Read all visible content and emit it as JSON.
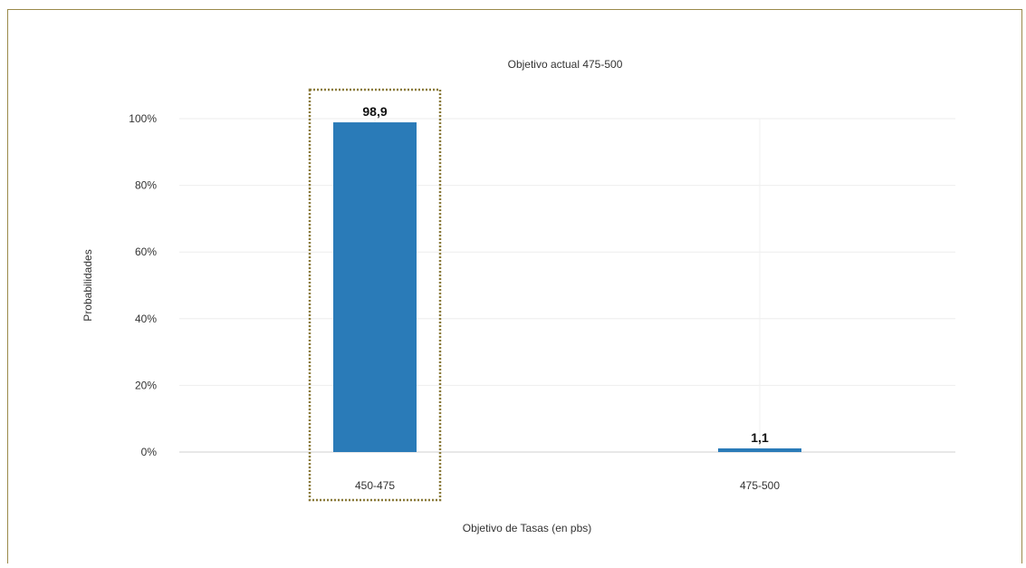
{
  "chart_data": {
    "type": "bar",
    "title": "Objetivo actual 475-500",
    "xlabel": "Objetivo de Tasas (en pbs)",
    "ylabel": "Probabilidades",
    "categories": [
      "450-475",
      "475-500"
    ],
    "values": [
      98.9,
      1.1
    ],
    "data_labels": [
      "98,9",
      "1,1"
    ],
    "y_ticks": [
      "0%",
      "20%",
      "40%",
      "60%",
      "80%",
      "100%"
    ],
    "ylim": [
      0,
      100
    ],
    "grid": true,
    "highlighted_category": "450-475",
    "bar_color": "#2a7bb8",
    "highlight_border_color": "#8a7a3a",
    "frame_color": "#9a8a4a"
  }
}
